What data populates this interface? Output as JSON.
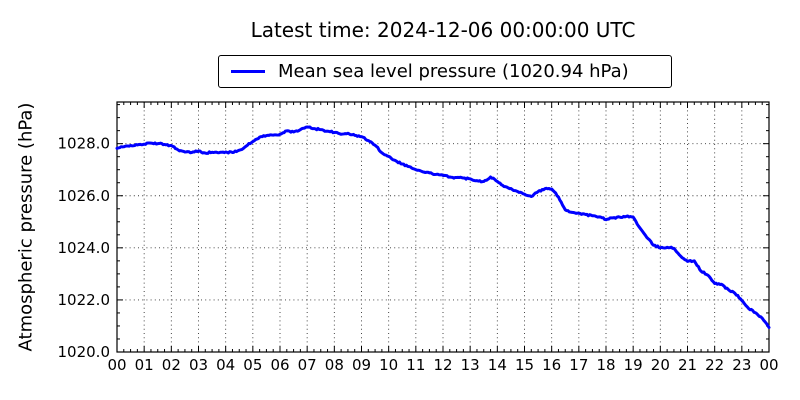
{
  "title": "Latest time: 2024-12-06 00:00:00 UTC",
  "legend": {
    "label": "Mean sea level pressure (1020.94 hPa)",
    "line_color": "#0000ff"
  },
  "latest_time_utc": "2024-12-06 00:00:00",
  "latest_value_hpa": 1020.94,
  "chart_data": {
    "type": "line",
    "title": "Latest time: 2024-12-06 00:00:00 UTC",
    "xlabel": "",
    "ylabel": "Atmospheric pressure (hPa)",
    "xlim": [
      0,
      24
    ],
    "ylim": [
      1020.0,
      1029.6
    ],
    "grid": "dotted",
    "legend_position": "above-plot-center",
    "xtick_hours": [
      0,
      1,
      2,
      3,
      4,
      5,
      6,
      7,
      8,
      9,
      10,
      11,
      12,
      13,
      14,
      15,
      16,
      17,
      18,
      19,
      20,
      21,
      22,
      23,
      24
    ],
    "xtick_labels": [
      "00",
      "01",
      "02",
      "03",
      "04",
      "05",
      "06",
      "07",
      "08",
      "09",
      "10",
      "11",
      "12",
      "13",
      "14",
      "15",
      "16",
      "17",
      "18",
      "19",
      "20",
      "21",
      "22",
      "23",
      "00"
    ],
    "ytick_values": [
      1020.0,
      1022.0,
      1024.0,
      1026.0,
      1028.0
    ],
    "ytick_labels": [
      "1020.0",
      "1022.0",
      "1024.0",
      "1026.0",
      "1028.0"
    ],
    "minor_xtick_step_hours": 0.25,
    "minor_ytick_step_hpa": 0.5,
    "series": [
      {
        "name": "Mean sea level pressure (1020.94 hPa)",
        "color": "#0000ff",
        "line_width": 3,
        "x": [
          0,
          0.25,
          0.5,
          0.75,
          1,
          1.25,
          1.5,
          1.75,
          2,
          2.25,
          2.5,
          2.75,
          3,
          3.25,
          3.5,
          3.75,
          4,
          4.25,
          4.5,
          4.75,
          5,
          5.25,
          5.5,
          5.75,
          6,
          6.25,
          6.5,
          6.75,
          7,
          7.25,
          7.5,
          7.75,
          8,
          8.25,
          8.5,
          8.75,
          9,
          9.25,
          9.5,
          9.75,
          10,
          10.25,
          10.5,
          10.75,
          11,
          11.25,
          11.5,
          11.75,
          12,
          12.25,
          12.5,
          12.75,
          13,
          13.25,
          13.5,
          13.75,
          14,
          14.25,
          14.5,
          14.75,
          15,
          15.25,
          15.5,
          15.75,
          16,
          16.25,
          16.5,
          16.75,
          17,
          17.25,
          17.5,
          17.75,
          18,
          18.25,
          18.5,
          18.75,
          19,
          19.25,
          19.5,
          19.75,
          20,
          20.25,
          20.5,
          20.75,
          21,
          21.25,
          21.5,
          21.75,
          22,
          22.25,
          22.5,
          22.75,
          23,
          23.25,
          23.5,
          23.75,
          24
        ],
        "y": [
          1027.82,
          1027.88,
          1027.93,
          1027.95,
          1027.98,
          1028.02,
          1028.0,
          1027.97,
          1027.93,
          1027.76,
          1027.68,
          1027.66,
          1027.72,
          1027.64,
          1027.67,
          1027.65,
          1027.68,
          1027.66,
          1027.75,
          1027.9,
          1028.08,
          1028.25,
          1028.31,
          1028.33,
          1028.36,
          1028.49,
          1028.45,
          1028.54,
          1028.64,
          1028.58,
          1028.54,
          1028.48,
          1028.43,
          1028.36,
          1028.4,
          1028.32,
          1028.27,
          1028.12,
          1027.94,
          1027.65,
          1027.51,
          1027.35,
          1027.22,
          1027.12,
          1027.0,
          1026.92,
          1026.88,
          1026.82,
          1026.78,
          1026.72,
          1026.7,
          1026.68,
          1026.65,
          1026.58,
          1026.55,
          1026.72,
          1026.55,
          1026.35,
          1026.28,
          1026.16,
          1026.06,
          1025.97,
          1026.16,
          1026.27,
          1026.26,
          1025.95,
          1025.46,
          1025.36,
          1025.33,
          1025.28,
          1025.23,
          1025.19,
          1025.08,
          1025.15,
          1025.18,
          1025.21,
          1025.18,
          1024.76,
          1024.4,
          1024.1,
          1024.0,
          1024.02,
          1023.98,
          1023.68,
          1023.48,
          1023.5,
          1023.1,
          1022.95,
          1022.63,
          1022.6,
          1022.4,
          1022.25,
          1021.98,
          1021.67,
          1021.51,
          1021.3,
          1020.94
        ]
      }
    ]
  },
  "style": {
    "axis_color": "#000000",
    "grid_color": "#333333",
    "background": "#ffffff"
  }
}
